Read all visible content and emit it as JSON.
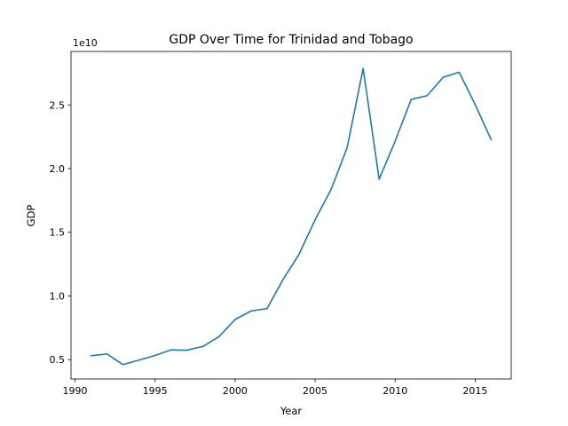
{
  "chart_data": {
    "type": "line",
    "title": "GDP Over Time for Trinidad and Tobago",
    "xlabel": "Year",
    "ylabel": "GDP",
    "y_offset_label": "1e10",
    "y_scale": 10000000000,
    "xlim": [
      1989.75,
      2017.25
    ],
    "ylim": [
      3.48,
      29.2
    ],
    "x_ticks": [
      1990,
      1995,
      2000,
      2005,
      2010,
      2015
    ],
    "x_tick_labels": [
      "1990",
      "1995",
      "2000",
      "2005",
      "2010",
      "2015"
    ],
    "y_ticks": [
      5.0,
      10.0,
      15.0,
      20.0,
      25.0
    ],
    "y_tick_labels": [
      "0.5",
      "1.0",
      "1.5",
      "2.0",
      "2.5"
    ],
    "grid": false,
    "legend": "none",
    "series": [
      {
        "color": "#1f77b4",
        "x": [
          1991,
          1992,
          1993,
          1994,
          1995,
          1996,
          1997,
          1998,
          1999,
          2000,
          2001,
          2002,
          2003,
          2004,
          2005,
          2006,
          2007,
          2008,
          2009,
          2010,
          2011,
          2012,
          2013,
          2014,
          2015,
          2016
        ],
        "y": [
          5.31,
          5.44,
          4.61,
          4.96,
          5.33,
          5.76,
          5.74,
          6.04,
          6.81,
          8.15,
          8.82,
          9.01,
          11.3,
          13.28,
          15.98,
          18.37,
          21.64,
          27.87,
          19.17,
          22.16,
          25.43,
          25.73,
          27.18,
          27.57,
          25.02,
          22.27
        ]
      }
    ]
  }
}
